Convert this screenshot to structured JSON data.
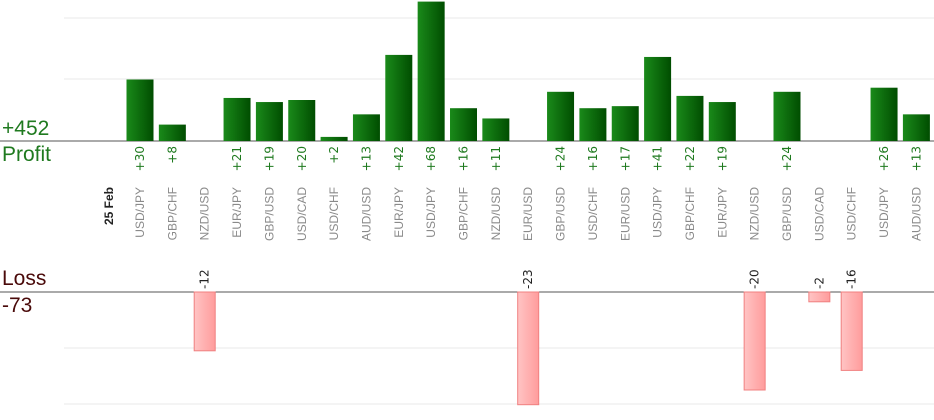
{
  "summary": {
    "profit_total": "+452",
    "profit_label": "Profit",
    "loss_label": "Loss",
    "loss_total": "-73"
  },
  "colors": {
    "profit_bar_light": "#1a8a1a",
    "profit_bar_dark": "#004d00",
    "loss_bar_fill": "#ffb3b3",
    "loss_bar_edge": "#f08080",
    "profit_text": "#1f7a1f",
    "loss_text": "#4a0a0a",
    "axis": "#555555",
    "grid": "#e8e8e8"
  },
  "chart_data": {
    "type": "bar",
    "date_label": "25 Feb",
    "categories": [
      "USD/JPY",
      "GBP/CHF",
      "NZD/USD",
      "EUR/JPY",
      "GBP/USD",
      "USD/CAD",
      "USD/CHF",
      "AUD/USD",
      "EUR/JPY",
      "USD/JPY",
      "GBP/CHF",
      "NZD/USD",
      "EUR/USD",
      "GBP/USD",
      "USD/CHF",
      "EUR/USD",
      "USD/JPY",
      "GBP/CHF",
      "EUR/JPY",
      "NZD/USD",
      "GBP/USD",
      "USD/CAD",
      "USD/CHF",
      "USD/JPY",
      "AUD/USD"
    ],
    "values": [
      30,
      8,
      -12,
      21,
      19,
      20,
      2,
      13,
      42,
      68,
      16,
      11,
      -23,
      24,
      16,
      17,
      41,
      22,
      19,
      -20,
      24,
      -2,
      -16,
      26,
      13
    ],
    "value_labels": [
      "+30",
      "+8",
      "-12",
      "+21",
      "+19",
      "+20",
      "+2",
      "+13",
      "+42",
      "+68",
      "+16",
      "+11",
      "-23",
      "+24",
      "+16",
      "+17",
      "+41",
      "+22",
      "+19",
      "-20",
      "+24",
      "-2",
      "-16",
      "+26",
      "+13"
    ],
    "grid": true
  }
}
